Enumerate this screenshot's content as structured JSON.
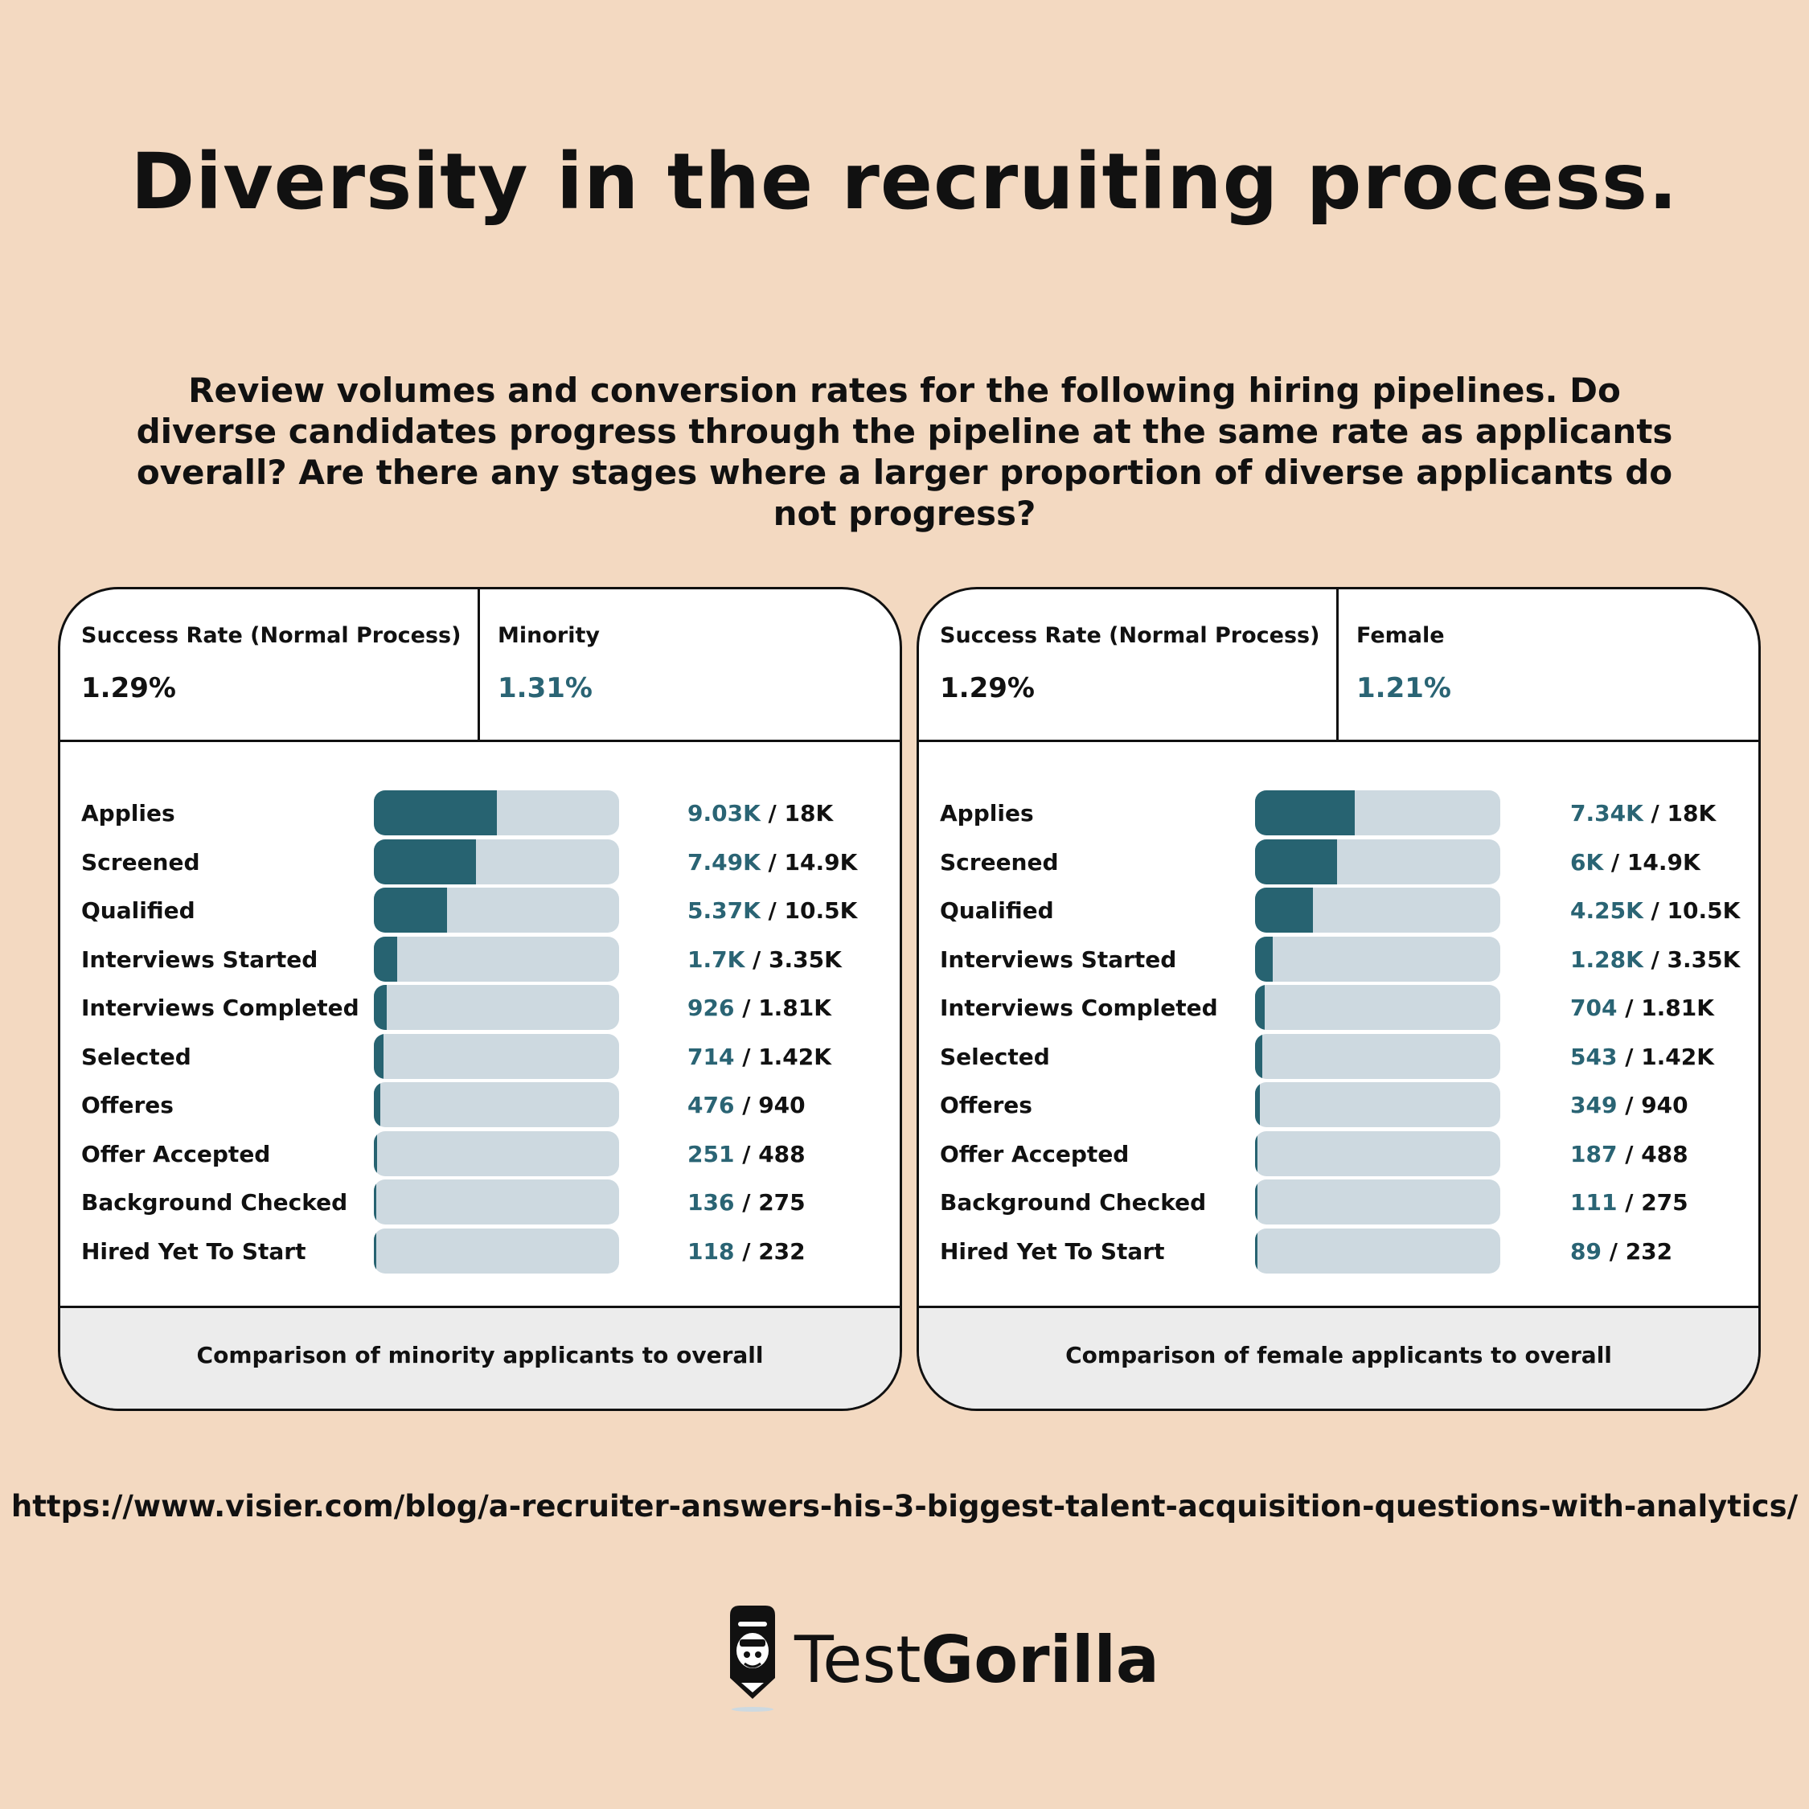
{
  "title": "Diversity in the recruiting process.",
  "subtitle": "Review volumes and conversion rates for the following hiring pipelines. Do diverse candidates progress through the pipeline at the same rate as applicants overall? Are there any stages where a larger proportion of diverse applicants do not progress?",
  "colors": {
    "background": "#f3d9c1",
    "accent": "#2a6474",
    "bar_fill": "#276371",
    "bar_track": "#cdd9e0"
  },
  "panels": [
    {
      "normal_label": "Success Rate (Normal Process)",
      "normal_value": "1.29%",
      "group_label": "Minority",
      "group_value": "1.31%",
      "footer": "Comparison of minority applicants to overall"
    },
    {
      "normal_label": "Success Rate (Normal Process)",
      "normal_value": "1.29%",
      "group_label": "Female",
      "group_value": "1.21%",
      "footer": "Comparison of female applicants to overall"
    }
  ],
  "chart_data": [
    {
      "type": "bar",
      "title": "Comparison of minority applicants to overall",
      "categories": [
        "Applies",
        "Screened",
        "Qualified",
        "Interviews Started",
        "Interviews Completed",
        "Selected",
        "Offeres",
        "Offer Accepted",
        "Background Checked",
        "Hired Yet To Start"
      ],
      "series": [
        {
          "name": "Minority",
          "values": [
            9030,
            7490,
            5370,
            1700,
            926,
            714,
            476,
            251,
            136,
            118
          ]
        },
        {
          "name": "Overall",
          "values": [
            18000,
            14900,
            10500,
            3350,
            1810,
            1420,
            940,
            488,
            275,
            232
          ]
        }
      ],
      "value_labels": [
        "9.03K",
        "7.49K",
        "5.37K",
        "1.7K",
        "926",
        "714",
        "476",
        "251",
        "136",
        "118"
      ],
      "total_labels": [
        "18K",
        "14.9K",
        "10.5K",
        "3.35K",
        "1.81K",
        "1.42K",
        "940",
        "488",
        "275",
        "232"
      ],
      "scale_max": 18000
    },
    {
      "type": "bar",
      "title": "Comparison of female applicants to overall",
      "categories": [
        "Applies",
        "Screened",
        "Qualified",
        "Interviews Started",
        "Interviews Completed",
        "Selected",
        "Offeres",
        "Offer Accepted",
        "Background Checked",
        "Hired Yet To Start"
      ],
      "series": [
        {
          "name": "Female",
          "values": [
            7340,
            6000,
            4250,
            1280,
            704,
            543,
            349,
            187,
            111,
            89
          ]
        },
        {
          "name": "Overall",
          "values": [
            18000,
            14900,
            10500,
            3350,
            1810,
            1420,
            940,
            488,
            275,
            232
          ]
        }
      ],
      "value_labels": [
        "7.34K",
        "6K",
        "4.25K",
        "1.28K",
        "704",
        "543",
        "349",
        "187",
        "111",
        "89"
      ],
      "total_labels": [
        "18K",
        "14.9K",
        "10.5K",
        "3.35K",
        "1.81K",
        "1.42K",
        "940",
        "488",
        "275",
        "232"
      ],
      "scale_max": 18000
    }
  ],
  "source": "https://www.visier.com/blog/a-recruiter-answers-his-3-biggest-talent-acquisition-questions-with-analytics/",
  "brand": {
    "light": "Test",
    "bold": "Gorilla",
    "icon": "gorilla-logo-icon"
  }
}
